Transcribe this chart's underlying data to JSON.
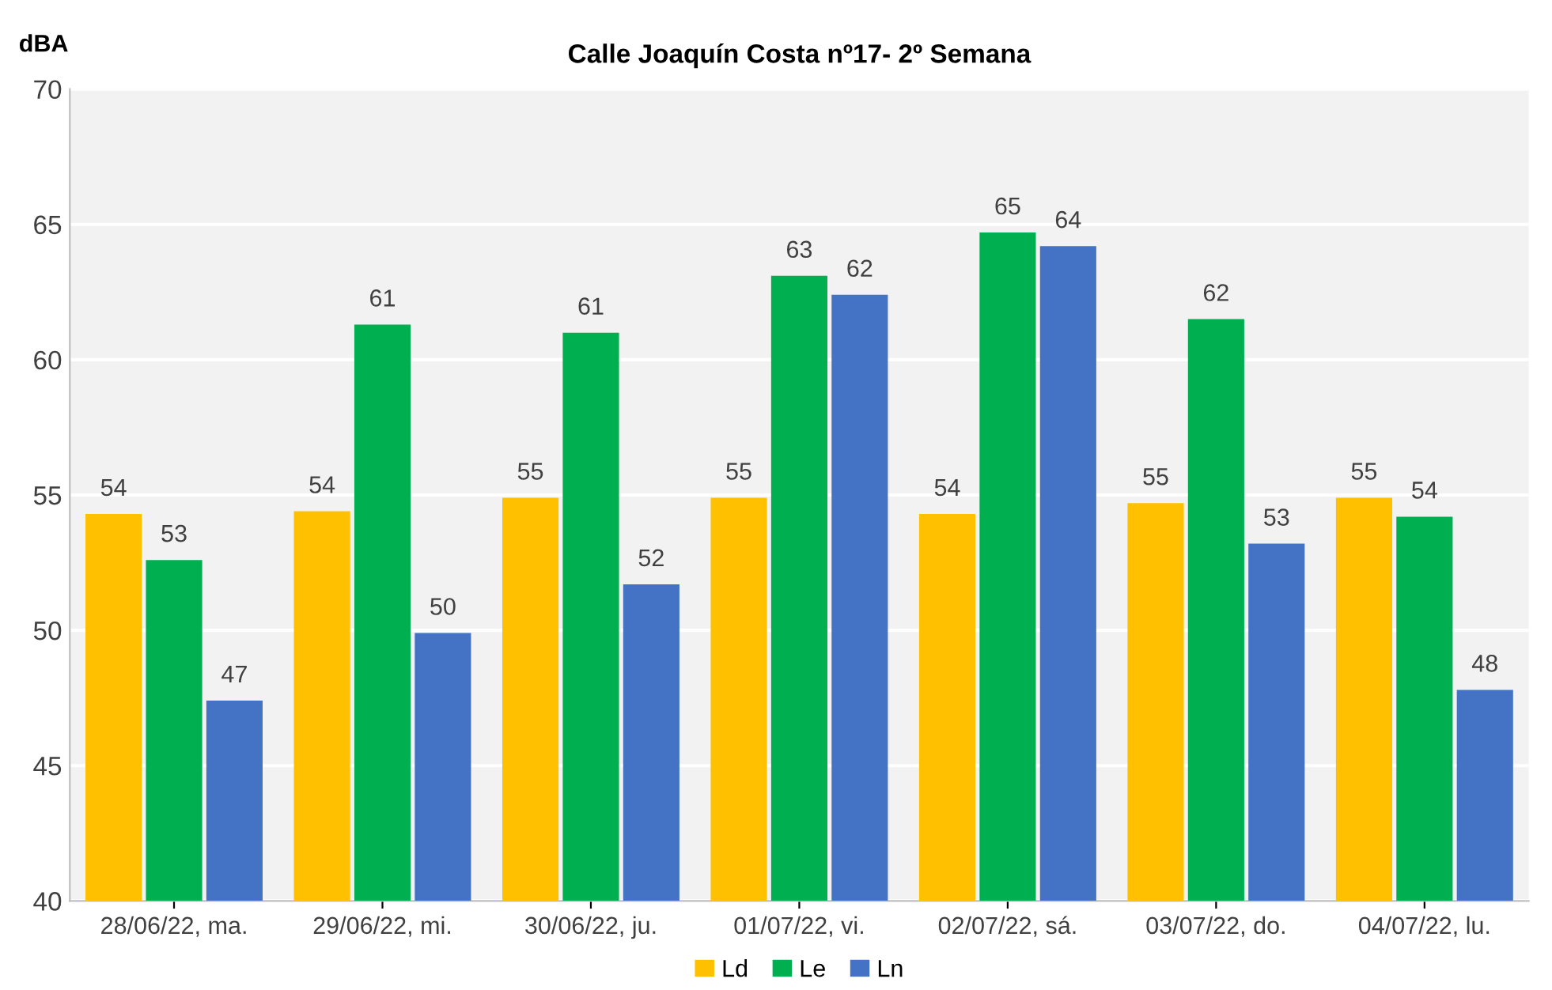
{
  "chart_data": {
    "type": "bar",
    "title": "Calle Joaquín Costa nº17- 2º Semana",
    "ylabel": "dBA",
    "categories": [
      "28/06/22, ma.",
      "29/06/22, mi.",
      "30/06/22, ju.",
      "01/07/22, vi.",
      "02/07/22, sá.",
      "03/07/22, do.",
      "04/07/22, lu."
    ],
    "series": [
      {
        "name": "Ld",
        "color": "#ffc000",
        "values": [
          54.3,
          54.4,
          54.9,
          54.9,
          54.3,
          54.7,
          54.9
        ],
        "value_labels": [
          "54",
          "54",
          "55",
          "55",
          "54",
          "55",
          "55"
        ]
      },
      {
        "name": "Le",
        "color": "#00b050",
        "values": [
          52.6,
          61.3,
          61.0,
          63.1,
          64.7,
          61.5,
          54.2
        ],
        "value_labels": [
          "53",
          "61",
          "61",
          "63",
          "65",
          "62",
          "54"
        ]
      },
      {
        "name": "Ln",
        "color": "#4472c4",
        "values": [
          47.4,
          49.9,
          51.7,
          62.4,
          64.2,
          53.2,
          47.8
        ],
        "value_labels": [
          "47",
          "50",
          "52",
          "62",
          "64",
          "53",
          "48"
        ]
      }
    ],
    "ylim": [
      40,
      70
    ],
    "yticks": [
      40,
      45,
      50,
      55,
      60,
      65,
      70
    ],
    "grid": "y",
    "legend": "bottom"
  }
}
